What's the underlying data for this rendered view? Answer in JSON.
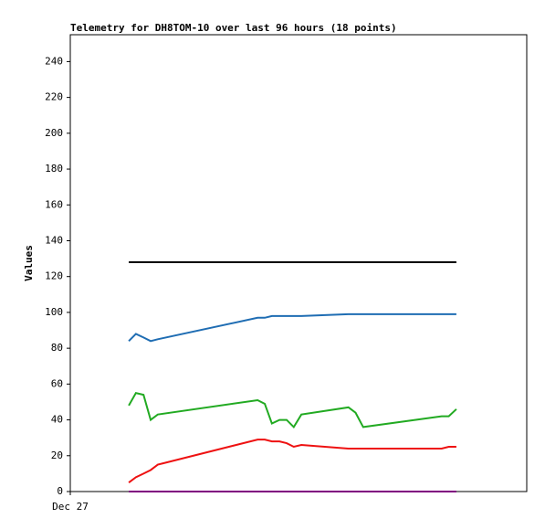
{
  "chart_data": {
    "type": "line",
    "title": "Telemetry for DH8TOM-10 over last 96 hours (18 points)",
    "y_label": "Values",
    "x": [
      12.3,
      13.8,
      15.4,
      16.9,
      18.4,
      39.4,
      40.9,
      42.4,
      44.0,
      45.5,
      47.0,
      48.6,
      58.5,
      60.0,
      61.6,
      78.1,
      79.6,
      81.2
    ],
    "xlim": [
      0,
      96
    ],
    "xticks": [
      {
        "value": 0,
        "label": "Dec 27"
      }
    ],
    "ylim": [
      0,
      255
    ],
    "yticks": [
      0,
      20,
      40,
      60,
      80,
      100,
      120,
      140,
      160,
      180,
      200,
      220,
      240
    ],
    "grid": false,
    "series": [
      {
        "color": "#000000",
        "values": [
          128,
          128,
          128,
          128,
          128,
          128,
          128,
          128,
          128,
          128,
          128,
          128,
          128,
          128,
          128,
          128,
          128,
          128
        ]
      },
      {
        "color": "#1f6db3",
        "values": [
          84,
          88,
          86,
          84,
          85,
          97,
          97,
          98,
          98,
          98,
          98,
          98,
          99,
          99,
          99,
          99,
          99,
          99
        ]
      },
      {
        "color": "#22aa22",
        "values": [
          48,
          55,
          54,
          40,
          43,
          51,
          49,
          38,
          40,
          40,
          36,
          43,
          47,
          44,
          36,
          42,
          42,
          46
        ]
      },
      {
        "color": "#ee1111",
        "values": [
          5,
          8,
          10,
          12,
          15,
          29,
          29,
          28,
          28,
          27,
          25,
          26,
          24,
          24,
          24,
          24,
          25,
          25
        ]
      },
      {
        "color": "#800080",
        "values": [
          0,
          0,
          0,
          0,
          0,
          0,
          0,
          0,
          0,
          0,
          0,
          0,
          0,
          0,
          0,
          0,
          0,
          0
        ]
      }
    ]
  }
}
